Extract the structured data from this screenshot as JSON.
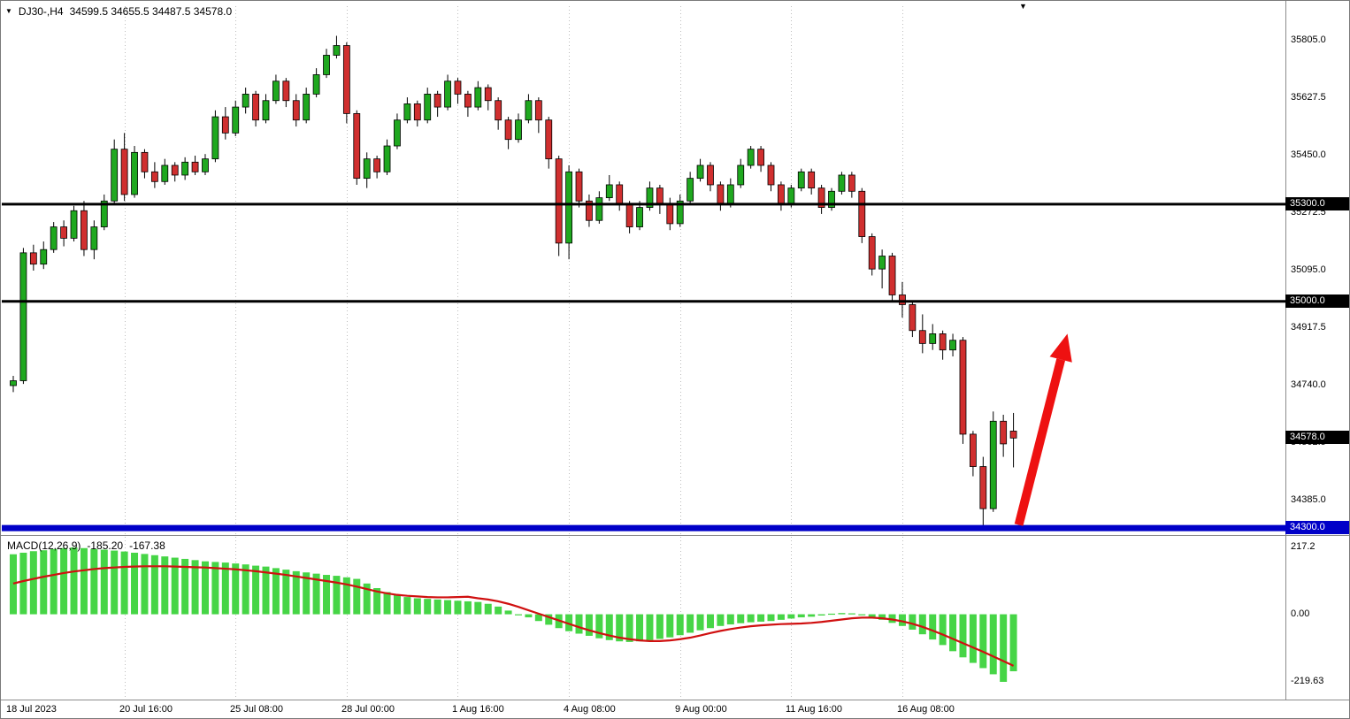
{
  "header": {
    "collapse_icon": "▼",
    "symbol_period": "DJ30-,H4",
    "ohlc": "34599.5 34655.5 34487.5 34578.0"
  },
  "shift_marker_icon": "▼",
  "macd_panel": {
    "label": "MACD(12,26,9)",
    "value": "-185.20",
    "signal": "-167.38",
    "axis_labels": [
      "217.2",
      "0.00",
      "-219.63"
    ]
  },
  "price_axis": {
    "labels": [
      "35805.0",
      "35627.5",
      "35450.0",
      "35272.5",
      "35095.0",
      "34917.5",
      "34740.0",
      "34562.5",
      "34385.0"
    ]
  },
  "price_badges": [
    {
      "text": "35300.0",
      "bg": "#000000"
    },
    {
      "text": "35000.0",
      "bg": "#000000"
    },
    {
      "text": "34578.0",
      "bg": "#000000"
    },
    {
      "text": "34300.0",
      "bg": "#0000c8"
    }
  ],
  "time_axis": {
    "labels": [
      "18 Jul 2023",
      "20 Jul 16:00",
      "25 Jul 08:00",
      "28 Jul 00:00",
      "1 Aug 16:00",
      "4 Aug 08:00",
      "9 Aug 00:00",
      "11 Aug 16:00",
      "16 Aug 08:00"
    ]
  },
  "chart_data": {
    "type": "candlestick",
    "symbol": "DJ30-",
    "timeframe": "H4",
    "current_bar": {
      "open": 34599.5,
      "high": 34655.5,
      "low": 34487.5,
      "close": 34578.0
    },
    "current_price": 34578.0,
    "price_ticks": [
      35805.0,
      35627.5,
      35450.0,
      35272.5,
      35095.0,
      34917.5,
      34740.0,
      34562.5,
      34385.0
    ],
    "horizontal_levels": [
      {
        "price": 35300.0,
        "color": "#000000",
        "width": 3
      },
      {
        "price": 35000.0,
        "color": "#000000",
        "width": 3
      },
      {
        "price": 34300.0,
        "color": "#0000c8",
        "width": 7
      }
    ],
    "time_labels": [
      "18 Jul 2023",
      "20 Jul 16:00",
      "25 Jul 08:00",
      "28 Jul 00:00",
      "1 Aug 16:00",
      "4 Aug 08:00",
      "9 Aug 00:00",
      "11 Aug 16:00",
      "16 Aug 08:00"
    ],
    "colors": {
      "bull": "#1fa81f",
      "bear": "#d02f2f",
      "wick": "#000000",
      "histogram": "#46d546",
      "signal": "#d01010"
    },
    "candles": [
      [
        34740,
        34770,
        34720,
        34755
      ],
      [
        34755,
        35165,
        34745,
        35150
      ],
      [
        35150,
        35175,
        35095,
        35115
      ],
      [
        35115,
        35185,
        35100,
        35160
      ],
      [
        35160,
        35245,
        35150,
        35230
      ],
      [
        35230,
        35250,
        35170,
        35195
      ],
      [
        35195,
        35295,
        35185,
        35280
      ],
      [
        35280,
        35310,
        35140,
        35160
      ],
      [
        35160,
        35250,
        35130,
        35230
      ],
      [
        35230,
        35330,
        35220,
        35310
      ],
      [
        35310,
        35500,
        35300,
        35470
      ],
      [
        35470,
        35520,
        35310,
        35330
      ],
      [
        35330,
        35480,
        35320,
        35460
      ],
      [
        35460,
        35470,
        35380,
        35400
      ],
      [
        35400,
        35430,
        35350,
        35370
      ],
      [
        35370,
        35440,
        35360,
        35420
      ],
      [
        35420,
        35430,
        35370,
        35390
      ],
      [
        35390,
        35445,
        35375,
        35430
      ],
      [
        35430,
        35450,
        35390,
        35400
      ],
      [
        35400,
        35455,
        35390,
        35440
      ],
      [
        35440,
        35590,
        35430,
        35570
      ],
      [
        35570,
        35600,
        35500,
        35520
      ],
      [
        35520,
        35620,
        35510,
        35600
      ],
      [
        35600,
        35660,
        35580,
        35640
      ],
      [
        35640,
        35650,
        35540,
        35560
      ],
      [
        35560,
        35640,
        35550,
        35620
      ],
      [
        35620,
        35700,
        35610,
        35680
      ],
      [
        35680,
        35690,
        35600,
        35620
      ],
      [
        35620,
        35640,
        35540,
        35560
      ],
      [
        35560,
        35660,
        35550,
        35640
      ],
      [
        35640,
        35720,
        35630,
        35700
      ],
      [
        35700,
        35780,
        35690,
        35760
      ],
      [
        35760,
        35820,
        35750,
        35790
      ],
      [
        35790,
        35800,
        35550,
        35580
      ],
      [
        35580,
        35590,
        35360,
        35380
      ],
      [
        35380,
        35460,
        35350,
        35440
      ],
      [
        35440,
        35450,
        35380,
        35400
      ],
      [
        35400,
        35500,
        35390,
        35480
      ],
      [
        35480,
        35580,
        35470,
        35560
      ],
      [
        35560,
        35630,
        35550,
        35610
      ],
      [
        35610,
        35620,
        35540,
        35560
      ],
      [
        35560,
        35660,
        35550,
        35640
      ],
      [
        35640,
        35650,
        35570,
        35600
      ],
      [
        35600,
        35700,
        35590,
        35680
      ],
      [
        35680,
        35690,
        35610,
        35640
      ],
      [
        35640,
        35650,
        35570,
        35600
      ],
      [
        35600,
        35680,
        35590,
        35660
      ],
      [
        35660,
        35670,
        35590,
        35620
      ],
      [
        35620,
        35630,
        35530,
        35560
      ],
      [
        35560,
        35570,
        35470,
        35500
      ],
      [
        35500,
        35580,
        35490,
        35560
      ],
      [
        35560,
        35640,
        35550,
        35620
      ],
      [
        35620,
        35630,
        35520,
        35560
      ],
      [
        35560,
        35570,
        35410,
        35440
      ],
      [
        35440,
        35450,
        35140,
        35180
      ],
      [
        35180,
        35420,
        35130,
        35400
      ],
      [
        35400,
        35410,
        35290,
        35310
      ],
      [
        35310,
        35330,
        35230,
        35250
      ],
      [
        35250,
        35340,
        35240,
        35320
      ],
      [
        35320,
        35390,
        35310,
        35360
      ],
      [
        35360,
        35370,
        35280,
        35300
      ],
      [
        35300,
        35310,
        35210,
        35230
      ],
      [
        35230,
        35310,
        35220,
        35290
      ],
      [
        35290,
        35370,
        35280,
        35350
      ],
      [
        35350,
        35360,
        35270,
        35300
      ],
      [
        35300,
        35320,
        35220,
        35240
      ],
      [
        35240,
        35330,
        35230,
        35310
      ],
      [
        35310,
        35400,
        35300,
        35380
      ],
      [
        35380,
        35440,
        35370,
        35420
      ],
      [
        35420,
        35430,
        35340,
        35360
      ],
      [
        35360,
        35370,
        35280,
        35300
      ],
      [
        35300,
        35380,
        35290,
        35360
      ],
      [
        35360,
        35440,
        35350,
        35420
      ],
      [
        35420,
        35480,
        35410,
        35470
      ],
      [
        35470,
        35480,
        35400,
        35420
      ],
      [
        35420,
        35430,
        35340,
        35360
      ],
      [
        35360,
        35370,
        35280,
        35300
      ],
      [
        35300,
        35360,
        35290,
        35350
      ],
      [
        35350,
        35410,
        35340,
        35400
      ],
      [
        35400,
        35410,
        35330,
        35350
      ],
      [
        35350,
        35360,
        35270,
        35290
      ],
      [
        35290,
        35350,
        35280,
        35340
      ],
      [
        35340,
        35400,
        35330,
        35390
      ],
      [
        35390,
        35400,
        35320,
        35340
      ],
      [
        35340,
        35350,
        35180,
        35200
      ],
      [
        35200,
        35210,
        35080,
        35100
      ],
      [
        35100,
        35160,
        35040,
        35140
      ],
      [
        35140,
        35150,
        35000,
        35020
      ],
      [
        35020,
        35060,
        34950,
        34990
      ],
      [
        34990,
        35000,
        34890,
        34910
      ],
      [
        34910,
        34960,
        34840,
        34870
      ],
      [
        34870,
        34930,
        34850,
        34900
      ],
      [
        34900,
        34910,
        34820,
        34850
      ],
      [
        34850,
        34900,
        34830,
        34880
      ],
      [
        34880,
        34890,
        34560,
        34590
      ],
      [
        34590,
        34600,
        34460,
        34490
      ],
      [
        34490,
        34520,
        34300,
        34360
      ],
      [
        34360,
        34660,
        34350,
        34630
      ],
      [
        34630,
        34650,
        34520,
        34560
      ],
      [
        34599.5,
        34655.5,
        34487.5,
        34578.0
      ]
    ],
    "macd": {
      "params": "12,26,9",
      "value": -185.2,
      "signal_value": -167.38,
      "ticks": [
        217.2,
        0.0,
        -219.63
      ],
      "histogram": [
        195,
        200,
        205,
        208,
        212,
        215,
        217,
        215,
        212,
        210,
        207,
        204,
        200,
        196,
        192,
        188,
        184,
        180,
        176,
        172,
        170,
        168,
        165,
        162,
        158,
        155,
        150,
        145,
        140,
        136,
        132,
        128,
        125,
        120,
        115,
        100,
        85,
        72,
        62,
        56,
        52,
        50,
        48,
        46,
        44,
        42,
        40,
        34,
        25,
        12,
        0,
        -10,
        -22,
        -34,
        -45,
        -55,
        -63,
        -70,
        -78,
        -84,
        -88,
        -90,
        -88,
        -84,
        -80,
        -75,
        -68,
        -60,
        -52,
        -45,
        -38,
        -33,
        -29,
        -26,
        -24,
        -22,
        -18,
        -14,
        -10,
        -8,
        -4,
        2,
        4,
        3,
        -2,
        -10,
        -18,
        -28,
        -38,
        -50,
        -65,
        -82,
        -100,
        -120,
        -140,
        -158,
        -175,
        -195,
        -219.63,
        -185.2
      ],
      "signal": [
        100,
        108,
        115,
        122,
        128,
        134,
        139,
        143,
        147,
        150,
        152,
        154,
        155,
        156,
        156,
        156,
        155,
        154,
        153,
        152,
        150,
        148,
        146,
        143,
        140,
        136,
        132,
        128,
        123,
        118,
        113,
        108,
        103,
        97,
        90,
        82,
        74,
        68,
        63,
        60,
        58,
        56,
        55,
        55,
        56,
        57,
        52,
        48,
        42,
        34,
        24,
        13,
        2,
        -9,
        -20,
        -31,
        -42,
        -52,
        -61,
        -69,
        -76,
        -81,
        -85,
        -87,
        -87,
        -85,
        -81,
        -76,
        -69,
        -61,
        -54,
        -48,
        -43,
        -39,
        -36,
        -34,
        -32,
        -31,
        -30,
        -28,
        -25,
        -21,
        -17,
        -13,
        -11,
        -11,
        -13,
        -17,
        -23,
        -31,
        -41,
        -53,
        -66,
        -80,
        -94,
        -108,
        -122,
        -137,
        -152,
        -167.38
      ]
    },
    "trend_arrow": {
      "direction": "up",
      "from_price": 34310,
      "to_price": 34900,
      "color": "#ee1111"
    }
  }
}
